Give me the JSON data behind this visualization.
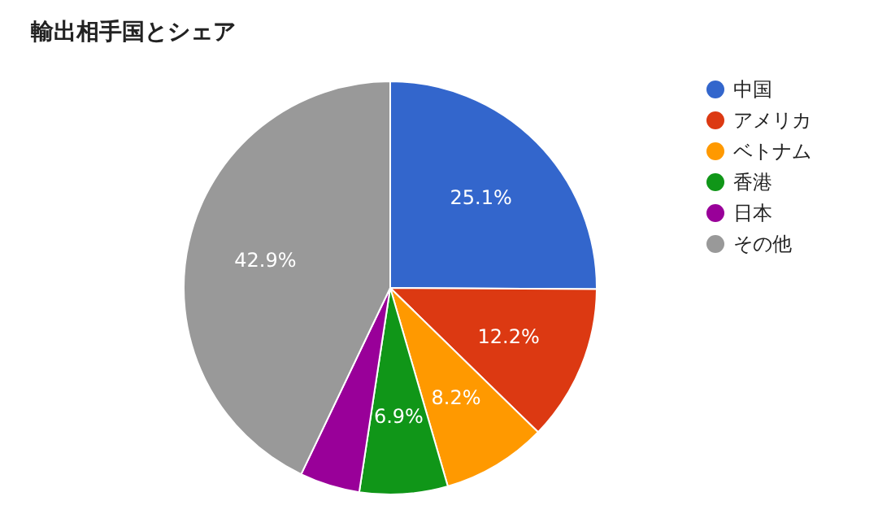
{
  "chart_data": {
    "type": "pie",
    "title": "輸出相手国とシェア",
    "categories": [
      "中国",
      "アメリカ",
      "ベトナム",
      "香港",
      "日本",
      "その他"
    ],
    "values": [
      25.1,
      12.2,
      8.2,
      6.9,
      4.7,
      42.9
    ],
    "value_labels": [
      "25.1%",
      "12.2%",
      "8.2%",
      "6.9%",
      null,
      "42.9%"
    ],
    "colors": [
      "#3366cc",
      "#dc3912",
      "#ff9900",
      "#109618",
      "#990099",
      "#999999"
    ],
    "legend": "right"
  }
}
